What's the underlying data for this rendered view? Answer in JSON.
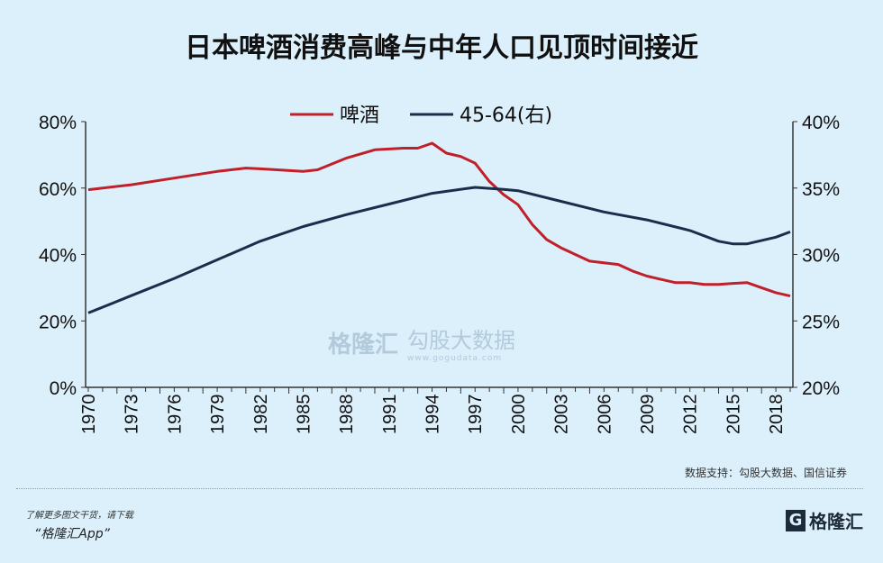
{
  "title": "日本啤酒消费高峰与中年人口见顶时间接近",
  "source": "数据支持：勾股大数据、国信证券",
  "promo": {
    "line1": "了解更多图文干货，请下载",
    "line2": "“格隆汇App”"
  },
  "logo": {
    "text": "格隆汇",
    "url": "www.gelonghui.com"
  },
  "watermark": {
    "brand": "格隆汇",
    "data_brand": "勾股大数据",
    "url": "www.gogudata.com"
  },
  "colors": {
    "beer": "#c0202a",
    "pop": "#1a2e4c",
    "background": "#dcf0fb"
  },
  "chart_data": {
    "type": "line",
    "title": "日本啤酒消费高峰与中年人口见顶时间接近",
    "legend_position": "top",
    "grid": false,
    "x_ticks": [
      "1970",
      "1973",
      "1976",
      "1979",
      "1982",
      "1985",
      "1988",
      "1991",
      "1994",
      "1997",
      "2000",
      "2003",
      "2006",
      "2009",
      "2012",
      "2015",
      "2018"
    ],
    "x_range": [
      1970,
      2019
    ],
    "y_left": {
      "ticks": [
        "0%",
        "20%",
        "40%",
        "60%",
        "80%"
      ],
      "range": [
        0,
        80
      ]
    },
    "y_right": {
      "ticks": [
        "20%",
        "25%",
        "30%",
        "35%",
        "40%"
      ],
      "range": [
        20,
        40
      ]
    },
    "series": [
      {
        "name": "啤酒",
        "axis": "left",
        "color": "#c0202a",
        "x": [
          1970,
          1973,
          1976,
          1979,
          1981,
          1982,
          1985,
          1986,
          1988,
          1990,
          1992,
          1993,
          1994,
          1995,
          1996,
          1997,
          1998,
          1999,
          2000,
          2001,
          2002,
          2003,
          2004,
          2005,
          2006,
          2007,
          2008,
          2009,
          2010,
          2011,
          2012,
          2013,
          2014,
          2015,
          2016,
          2017,
          2018,
          2019
        ],
        "y": [
          59.5,
          61,
          63,
          65,
          66,
          65.8,
          65,
          65.5,
          69,
          71.5,
          72,
          72,
          73.5,
          70.5,
          69.5,
          67.5,
          62,
          58,
          55,
          49,
          44.5,
          42,
          40,
          38,
          37.5,
          37,
          35,
          33.5,
          32.5,
          31.5,
          31.5,
          31,
          31,
          31.3,
          31.5,
          30,
          28.5,
          27.5
        ]
      },
      {
        "name": "45-64(右)",
        "axis": "right",
        "color": "#1a2e4c",
        "x": [
          1970,
          1973,
          1976,
          1979,
          1982,
          1985,
          1988,
          1991,
          1994,
          1997,
          1999,
          2000,
          2003,
          2006,
          2009,
          2012,
          2014,
          2015,
          2016,
          2018,
          2019
        ],
        "y": [
          25.6,
          26.9,
          28.2,
          29.6,
          31,
          32.1,
          33,
          33.8,
          34.6,
          35.05,
          34.9,
          34.8,
          34,
          33.2,
          32.6,
          31.8,
          31,
          30.8,
          30.8,
          31.3,
          31.7
        ]
      }
    ]
  }
}
